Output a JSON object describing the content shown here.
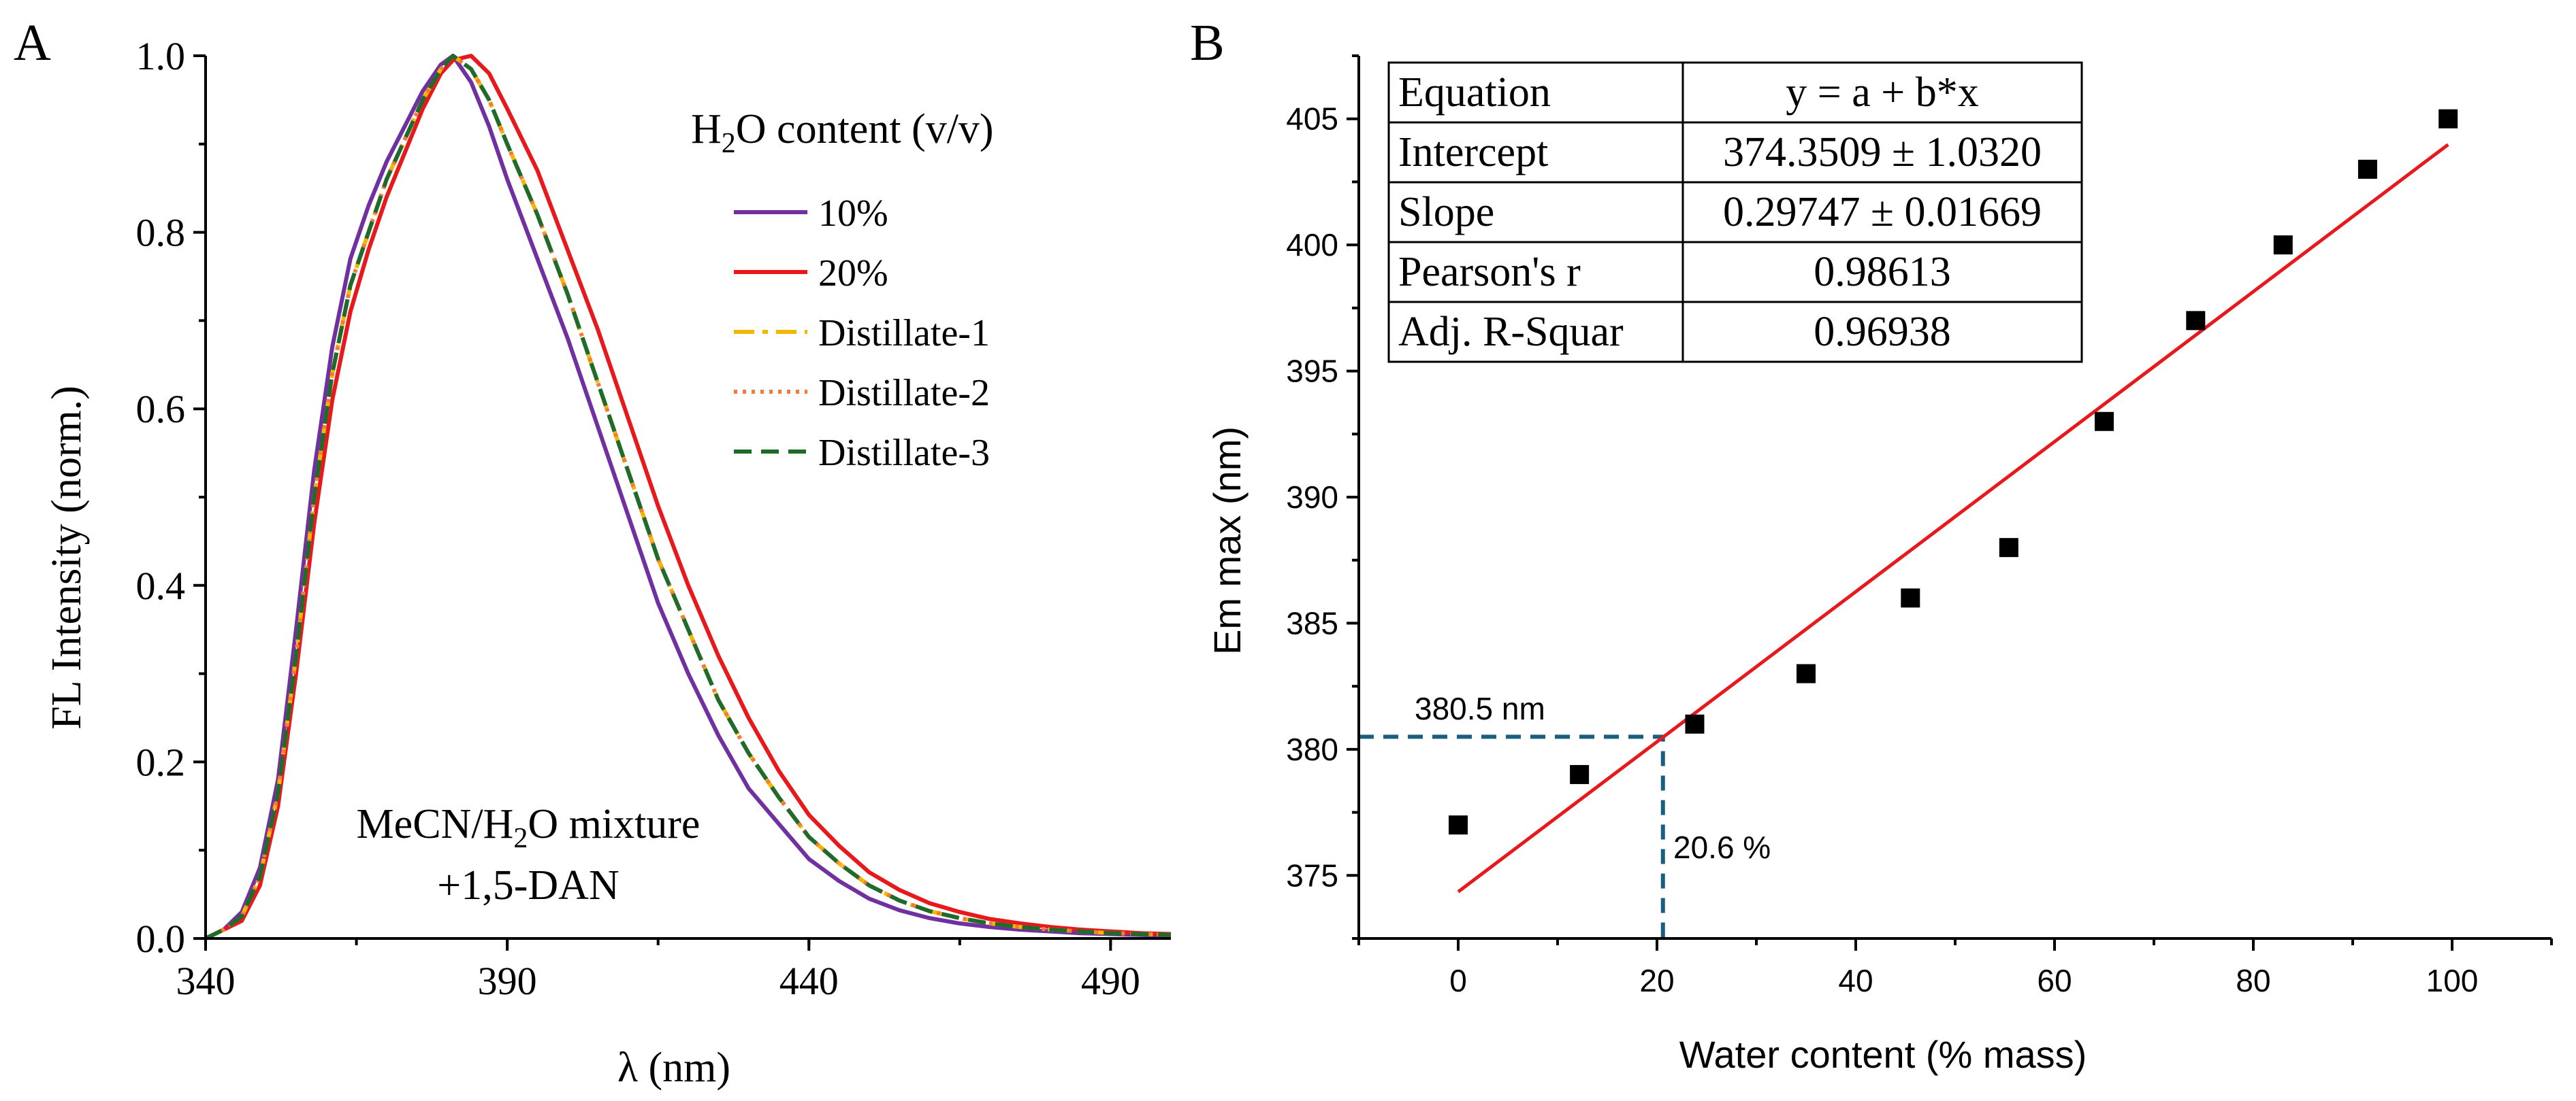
{
  "chart_data": [
    {
      "panel": "A",
      "type": "line",
      "xlabel": "λ (nm)",
      "ylabel": "FL Intensity (norm.)",
      "xlim": [
        340,
        500
      ],
      "ylim": [
        0,
        1
      ],
      "x_ticks": [
        "340",
        "390",
        "440",
        "490"
      ],
      "y_ticks": [
        "0.0",
        "0.2",
        "0.4",
        "0.6",
        "0.8",
        "1.0"
      ],
      "legend_title_prefix": "H",
      "legend_title_sub": "2",
      "legend_title_suffix": "O content (v/v)",
      "annotation_line1_prefix": "MeCN/H",
      "annotation_line1_sub": "2",
      "annotation_line1_suffix": "O mixture",
      "annotation_line2": "+1,5-DAN",
      "series": [
        {
          "name": "10%",
          "color": "#7030a0",
          "dash": "solid",
          "x": [
            340,
            343,
            346,
            349,
            352,
            355,
            358,
            361,
            364,
            367,
            370,
            373,
            376,
            379,
            381,
            384,
            387,
            390,
            395,
            400,
            405,
            410,
            415,
            420,
            425,
            430,
            435,
            440,
            445,
            450,
            455,
            460,
            465,
            470,
            475,
            480,
            485,
            490,
            495,
            500
          ],
          "y": [
            0.0,
            0.01,
            0.03,
            0.08,
            0.18,
            0.35,
            0.53,
            0.67,
            0.77,
            0.83,
            0.88,
            0.92,
            0.96,
            0.99,
            1.0,
            0.97,
            0.92,
            0.86,
            0.77,
            0.68,
            0.58,
            0.48,
            0.38,
            0.3,
            0.23,
            0.17,
            0.13,
            0.09,
            0.065,
            0.045,
            0.032,
            0.023,
            0.017,
            0.013,
            0.01,
            0.008,
            0.006,
            0.005,
            0.004,
            0.003
          ]
        },
        {
          "name": "20%",
          "color": "#e8191c",
          "dash": "solid",
          "x": [
            340,
            343,
            346,
            349,
            352,
            355,
            358,
            361,
            364,
            367,
            370,
            373,
            376,
            379,
            381,
            384,
            387,
            390,
            395,
            400,
            405,
            410,
            415,
            420,
            425,
            430,
            435,
            440,
            445,
            450,
            455,
            460,
            465,
            470,
            475,
            480,
            485,
            490,
            495,
            500
          ],
          "y": [
            0.0,
            0.01,
            0.02,
            0.06,
            0.15,
            0.3,
            0.47,
            0.61,
            0.71,
            0.78,
            0.84,
            0.89,
            0.94,
            0.98,
            0.995,
            1.0,
            0.98,
            0.94,
            0.87,
            0.78,
            0.69,
            0.59,
            0.49,
            0.4,
            0.32,
            0.25,
            0.19,
            0.14,
            0.105,
            0.075,
            0.055,
            0.04,
            0.03,
            0.022,
            0.017,
            0.013,
            0.01,
            0.008,
            0.006,
            0.005
          ]
        },
        {
          "name": "Distillate-1",
          "color": "#f2b800",
          "dash": "dashdot",
          "x": [
            340,
            343,
            346,
            349,
            352,
            355,
            358,
            361,
            364,
            367,
            370,
            373,
            376,
            379,
            381,
            384,
            387,
            390,
            395,
            400,
            405,
            410,
            415,
            420,
            425,
            430,
            435,
            440,
            445,
            450,
            455,
            460,
            465,
            470,
            475,
            480,
            485,
            490,
            495,
            500
          ],
          "y": [
            0.0,
            0.01,
            0.025,
            0.07,
            0.165,
            0.32,
            0.5,
            0.64,
            0.74,
            0.8,
            0.86,
            0.905,
            0.95,
            0.985,
            1.0,
            0.985,
            0.95,
            0.9,
            0.82,
            0.73,
            0.63,
            0.53,
            0.43,
            0.35,
            0.27,
            0.21,
            0.16,
            0.115,
            0.085,
            0.06,
            0.043,
            0.031,
            0.023,
            0.017,
            0.013,
            0.01,
            0.008,
            0.006,
            0.005,
            0.004
          ]
        },
        {
          "name": "Distillate-2",
          "color": "#f07b3a",
          "dash": "dotted",
          "x": [
            340,
            343,
            346,
            349,
            352,
            355,
            358,
            361,
            364,
            367,
            370,
            373,
            376,
            379,
            381,
            384,
            387,
            390,
            395,
            400,
            405,
            410,
            415,
            420,
            425,
            430,
            435,
            440,
            445,
            450,
            455,
            460,
            465,
            470,
            475,
            480,
            485,
            490,
            495,
            500
          ],
          "y": [
            0.0,
            0.01,
            0.025,
            0.07,
            0.165,
            0.32,
            0.5,
            0.64,
            0.74,
            0.8,
            0.86,
            0.905,
            0.95,
            0.985,
            1.0,
            0.985,
            0.95,
            0.9,
            0.82,
            0.73,
            0.63,
            0.53,
            0.43,
            0.35,
            0.27,
            0.21,
            0.16,
            0.115,
            0.085,
            0.06,
            0.043,
            0.031,
            0.023,
            0.017,
            0.013,
            0.01,
            0.008,
            0.006,
            0.005,
            0.004
          ]
        },
        {
          "name": "Distillate-3",
          "color": "#1f6b2c",
          "dash": "dashed",
          "x": [
            340,
            343,
            346,
            349,
            352,
            355,
            358,
            361,
            364,
            367,
            370,
            373,
            376,
            379,
            381,
            384,
            387,
            390,
            395,
            400,
            405,
            410,
            415,
            420,
            425,
            430,
            435,
            440,
            445,
            450,
            455,
            460,
            465,
            470,
            475,
            480,
            485,
            490,
            495,
            500
          ],
          "y": [
            0.0,
            0.01,
            0.025,
            0.07,
            0.165,
            0.32,
            0.5,
            0.64,
            0.74,
            0.8,
            0.86,
            0.905,
            0.95,
            0.985,
            1.0,
            0.985,
            0.95,
            0.9,
            0.82,
            0.73,
            0.63,
            0.53,
            0.43,
            0.35,
            0.27,
            0.21,
            0.16,
            0.115,
            0.085,
            0.06,
            0.043,
            0.031,
            0.023,
            0.017,
            0.013,
            0.01,
            0.008,
            0.006,
            0.005,
            0.004
          ]
        }
      ]
    },
    {
      "panel": "B",
      "type": "scatter",
      "xlabel": "Water content (% mass)",
      "ylabel": "Em max (nm)",
      "xlim": [
        -10,
        110
      ],
      "ylim": [
        372.5,
        407.5
      ],
      "x_ticks": [
        "0",
        "20",
        "40",
        "60",
        "80",
        "100"
      ],
      "y_ticks": [
        "375",
        "380",
        "385",
        "390",
        "395",
        "400",
        "405"
      ],
      "points": {
        "x": [
          0,
          12.2,
          23.8,
          35,
          45.5,
          55.4,
          65,
          74.2,
          83,
          91.5,
          99.6
        ],
        "y": [
          377,
          379,
          381,
          383,
          386,
          388,
          393,
          397,
          400,
          403,
          405
        ],
        "color": "#000000"
      },
      "fit": {
        "intercept": 374.3509,
        "slope": 0.29747,
        "x_range": [
          0,
          99.6
        ],
        "color": "#e8191c"
      },
      "guide": {
        "x": 20.6,
        "y": 380.5,
        "color": "#1b5e7e",
        "y_label": "380.5 nm",
        "x_label": "20.6 %"
      },
      "fit_table": [
        [
          "Equation",
          "y = a + b*x"
        ],
        [
          "Intercept",
          "374.3509 ± 1.0320"
        ],
        [
          "Slope",
          "0.29747 ± 0.01669"
        ],
        [
          "Pearson's r",
          "0.98613"
        ],
        [
          "Adj. R-Squar",
          "0.96938"
        ]
      ]
    }
  ],
  "panel_labels": {
    "a": "A",
    "b": "B"
  }
}
